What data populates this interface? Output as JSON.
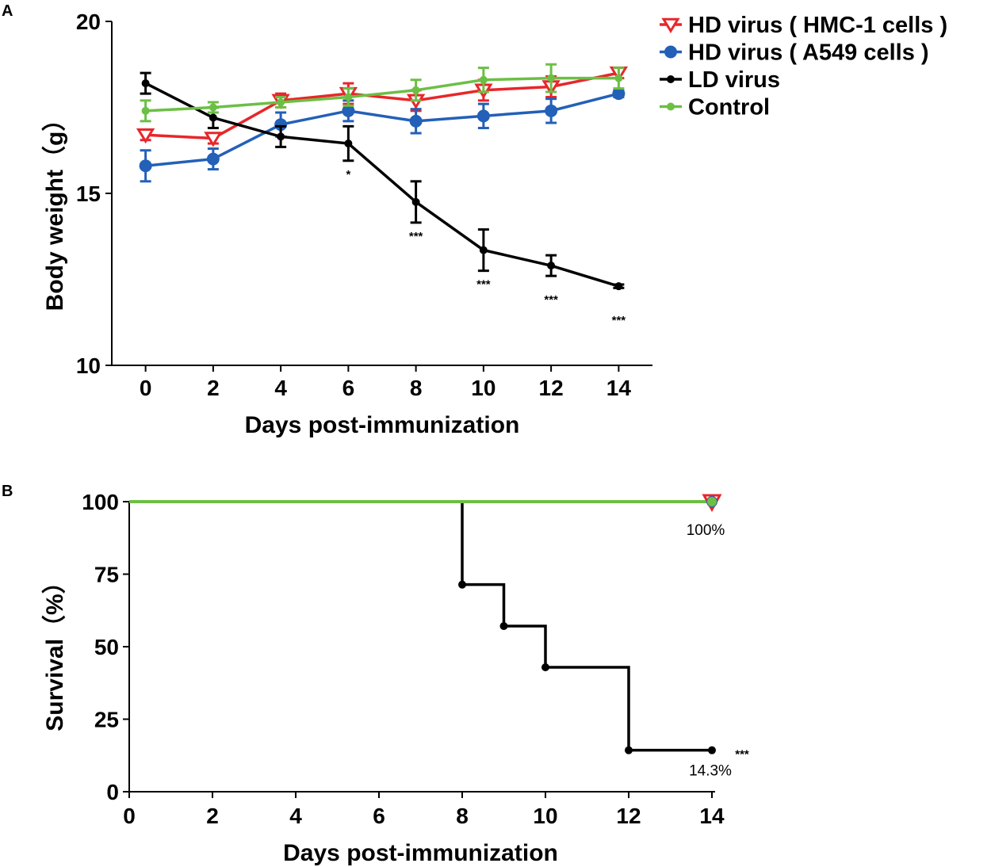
{
  "chart_data": [
    {
      "panel": "A",
      "type": "line",
      "xlabel": "Days post-immunization",
      "ylabel": "Body weight（g）",
      "xlim": [
        -1,
        15
      ],
      "ylim": [
        10,
        20
      ],
      "xticks": [
        "0",
        "2",
        "4",
        "6",
        "8",
        "10",
        "12",
        "14"
      ],
      "yticks": [
        "10",
        "15",
        "20"
      ],
      "x": [
        0,
        2,
        4,
        6,
        8,
        10,
        12,
        14
      ],
      "series": [
        {
          "name": "HD virus ( HMC-1 cells )",
          "color": "#e8262a",
          "marker": "triangle-down",
          "values": [
            16.7,
            16.6,
            17.7,
            17.9,
            17.7,
            18.0,
            18.1,
            18.5
          ],
          "errors": [
            0.15,
            0.15,
            0.2,
            0.3,
            0.3,
            0.3,
            0.3,
            0.15
          ]
        },
        {
          "name": "HD virus ( A549 cells )",
          "color": "#2360b8",
          "marker": "circle",
          "values": [
            15.8,
            16.0,
            17.0,
            17.4,
            17.1,
            17.25,
            17.4,
            17.9
          ],
          "errors": [
            0.45,
            0.3,
            0.35,
            0.3,
            0.35,
            0.35,
            0.35,
            0.1
          ]
        },
        {
          "name": "LD virus",
          "color": "#000000",
          "marker": "dot",
          "values": [
            18.2,
            17.2,
            16.65,
            16.45,
            14.75,
            13.35,
            12.9,
            12.3
          ],
          "errors": [
            0.3,
            0.3,
            0.3,
            0.5,
            0.6,
            0.6,
            0.3,
            0.05
          ]
        },
        {
          "name": "Control",
          "color": "#6cbf45",
          "marker": "dot",
          "values": [
            17.4,
            17.5,
            17.65,
            17.8,
            18.0,
            18.3,
            18.35,
            18.35
          ],
          "errors": [
            0.3,
            0.15,
            0.15,
            0.25,
            0.3,
            0.35,
            0.4,
            0.3
          ]
        }
      ],
      "significance": [
        {
          "x": 6,
          "y": 16.45,
          "text": "*"
        },
        {
          "x": 8,
          "y": 14.75,
          "text": "***"
        },
        {
          "x": 10,
          "y": 13.35,
          "text": "***"
        },
        {
          "x": 12,
          "y": 12.9,
          "text": "***"
        },
        {
          "x": 14,
          "y": 12.3,
          "text": "***"
        }
      ],
      "legend": "top-right"
    },
    {
      "panel": "B",
      "type": "line",
      "subtype": "survival-step",
      "xlabel": "Days post-immunization",
      "ylabel": "Survival（%）",
      "xlim": [
        0,
        14
      ],
      "ylim": [
        0,
        100
      ],
      "xticks": [
        "0",
        "2",
        "4",
        "6",
        "8",
        "10",
        "12",
        "14"
      ],
      "yticks": [
        "0",
        "25",
        "50",
        "75",
        "100"
      ],
      "series": [
        {
          "name": "Control",
          "color": "#6cbf45",
          "x": [
            0,
            14
          ],
          "values": [
            100,
            100
          ]
        },
        {
          "name": "LD virus",
          "color": "#000000",
          "x": [
            0,
            8,
            9,
            10,
            12,
            14
          ],
          "values": [
            100,
            71.4,
            57.1,
            42.9,
            14.3,
            14.3
          ]
        }
      ],
      "end_markers": [
        {
          "series": "HD virus ( HMC-1 cells )",
          "color": "#e8262a",
          "marker": "triangle-down",
          "x": 14,
          "y": 100
        },
        {
          "series": "HD virus ( A549 cells )",
          "color": "#2360b8",
          "marker": "circle",
          "x": 14,
          "y": 100
        },
        {
          "series": "Control",
          "color": "#6cbf45",
          "marker": "circle",
          "x": 14,
          "y": 100
        }
      ],
      "annotations": [
        {
          "x": 14,
          "y": 100,
          "text": "100%"
        },
        {
          "x": 14,
          "y": 14.3,
          "text": "14.3%"
        },
        {
          "x": 14,
          "y": 14.3,
          "text": "***"
        }
      ]
    }
  ]
}
